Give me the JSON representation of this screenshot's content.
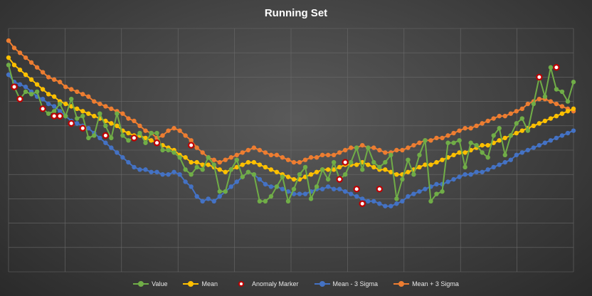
{
  "chart_data": {
    "type": "line",
    "title": "Running Set",
    "xlabel": "",
    "ylabel": "",
    "x": [
      1,
      2,
      3,
      4,
      5,
      6,
      7,
      8,
      9,
      10,
      11,
      12,
      13,
      14,
      15,
      16,
      17,
      18,
      19,
      20,
      21,
      22,
      23,
      24,
      25,
      26,
      27,
      28,
      29,
      30,
      31,
      32,
      33,
      34,
      35,
      36,
      37,
      38,
      39,
      40,
      41,
      42,
      43,
      44,
      45,
      46,
      47,
      48,
      49,
      50,
      51,
      52,
      53,
      54,
      55,
      56,
      57,
      58,
      59,
      60,
      61,
      62,
      63,
      64,
      65,
      66,
      67,
      68,
      69,
      70,
      71,
      72,
      73,
      74,
      75,
      76,
      77,
      78,
      79,
      80,
      81,
      82,
      83,
      84,
      85,
      86,
      87,
      88,
      89,
      90,
      91,
      92,
      93,
      94,
      95,
      96,
      97,
      98,
      99,
      100
    ],
    "xlim": [
      1,
      100
    ],
    "ylim": [
      0,
      100
    ],
    "grid": true,
    "legend_position": "bottom",
    "series": [
      {
        "name": "Value",
        "color": "#70ad47",
        "values": [
          85,
          76,
          71,
          74,
          73,
          74,
          67,
          65,
          66,
          69,
          64,
          71,
          63,
          64,
          55,
          56,
          65,
          60,
          55,
          65,
          56,
          54,
          55,
          57,
          53,
          57,
          57,
          50,
          50,
          49,
          47,
          42,
          40,
          43,
          42,
          47,
          44,
          33,
          33,
          42,
          46,
          39,
          41,
          40,
          29,
          29,
          31,
          35,
          39,
          29,
          34,
          40,
          43,
          30,
          35,
          42,
          38,
          45,
          38,
          40,
          45,
          51,
          42,
          51,
          45,
          43,
          45,
          48,
          30,
          38,
          46,
          40,
          48,
          54,
          29,
          32,
          33,
          53,
          53,
          54,
          43,
          53,
          52,
          49,
          47,
          56,
          59,
          48,
          56,
          61,
          63,
          58,
          69,
          80,
          72,
          84,
          75,
          74,
          70,
          78
        ]
      },
      {
        "name": "Mean",
        "color": "#ffc000",
        "values": [
          88,
          85,
          83,
          81,
          79,
          77,
          75,
          73,
          72,
          70,
          69,
          68,
          67,
          66,
          65,
          64,
          63,
          62,
          61,
          60,
          58,
          57,
          56,
          56,
          55,
          54,
          53,
          52,
          51,
          50,
          48,
          47,
          45,
          45,
          44,
          44,
          43,
          42,
          41,
          42,
          43,
          44,
          45,
          45,
          44,
          43,
          42,
          41,
          40,
          39,
          38,
          38,
          39,
          40,
          41,
          42,
          42,
          42,
          43,
          44,
          44,
          44,
          45,
          44,
          43,
          42,
          42,
          41,
          40,
          40,
          41,
          42,
          43,
          44,
          44,
          45,
          46,
          47,
          48,
          49,
          49,
          50,
          51,
          52,
          52,
          53,
          54,
          55,
          56,
          57,
          58,
          59,
          60,
          61,
          62,
          63,
          64,
          65,
          66,
          67
        ]
      },
      {
        "name": "Mean - 3 Sigma",
        "color": "#4472c4",
        "values": [
          81,
          78,
          77,
          76,
          74,
          72,
          71,
          69,
          68,
          66,
          64,
          62,
          61,
          60,
          59,
          57,
          55,
          53,
          51,
          49,
          47,
          45,
          43,
          42,
          42,
          41,
          41,
          40,
          40,
          41,
          40,
          37,
          35,
          31,
          29,
          30,
          29,
          31,
          33,
          35,
          37,
          39,
          41,
          40,
          38,
          36,
          35,
          35,
          34,
          33,
          32,
          32,
          32,
          33,
          34,
          34,
          35,
          34,
          34,
          33,
          32,
          31,
          30,
          29,
          29,
          28,
          27,
          27,
          28,
          29,
          31,
          32,
          33,
          34,
          35,
          36,
          36,
          37,
          38,
          39,
          40,
          40,
          41,
          41,
          42,
          43,
          44,
          45,
          46,
          48,
          49,
          50,
          51,
          52,
          53,
          54,
          55,
          56,
          57,
          58
        ]
      },
      {
        "name": "Mean + 3 Sigma",
        "color": "#ed7d31",
        "values": [
          95,
          92,
          90,
          88,
          86,
          84,
          82,
          80,
          79,
          78,
          76,
          75,
          74,
          73,
          72,
          70,
          69,
          68,
          67,
          66,
          65,
          63,
          62,
          60,
          58,
          57,
          55,
          56,
          58,
          59,
          58,
          56,
          54,
          51,
          49,
          47,
          46,
          45,
          46,
          47,
          48,
          49,
          50,
          51,
          50,
          49,
          48,
          48,
          47,
          46,
          45,
          45,
          46,
          47,
          47,
          48,
          48,
          48,
          49,
          50,
          51,
          51,
          52,
          51,
          51,
          50,
          49,
          49,
          50,
          50,
          51,
          52,
          53,
          54,
          54,
          55,
          55,
          56,
          57,
          58,
          59,
          59,
          60,
          61,
          62,
          63,
          64,
          64,
          65,
          66,
          67,
          69,
          70,
          71,
          71,
          70,
          69,
          68,
          67,
          66
        ]
      },
      {
        "name": "Anomaly Marker",
        "color": "#c00000",
        "points": [
          [
            2,
            76
          ],
          [
            3,
            71
          ],
          [
            7,
            67
          ],
          [
            9,
            64
          ],
          [
            10,
            64
          ],
          [
            12,
            61
          ],
          [
            14,
            59
          ],
          [
            18,
            56
          ],
          [
            23,
            55
          ],
          [
            27,
            53
          ],
          [
            33,
            52
          ],
          [
            59,
            38
          ],
          [
            60,
            45
          ],
          [
            62,
            34
          ],
          [
            66,
            34
          ],
          [
            94,
            80
          ],
          [
            97,
            84
          ],
          [
            63,
            28
          ]
        ]
      }
    ]
  },
  "legend": {
    "items": [
      {
        "label": "Value",
        "color": "#70ad47"
      },
      {
        "label": "Mean",
        "color": "#ffc000"
      },
      {
        "label": "Anomaly Marker",
        "color": "#c00000"
      },
      {
        "label": "Mean - 3 Sigma",
        "color": "#4472c4"
      },
      {
        "label": "Mean + 3 Sigma",
        "color": "#ed7d31"
      }
    ]
  }
}
